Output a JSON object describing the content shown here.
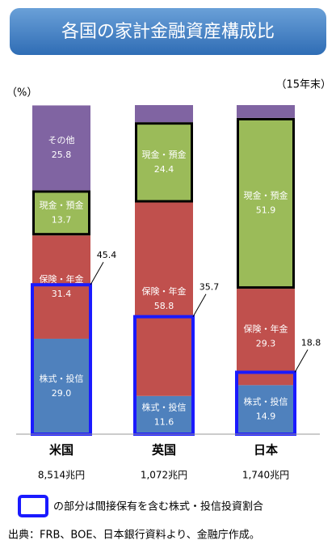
{
  "chart_data": {
    "type": "stacked_bar",
    "title": "各国の家計金融資産構成比",
    "subtitle": "（15年末）",
    "y_label": "（%）",
    "categories": [
      "米国",
      "英国",
      "日本"
    ],
    "totals": [
      "8,514兆円",
      "1,072兆円",
      "1,740兆円"
    ],
    "ylim": [
      0,
      100
    ],
    "series": [
      {
        "name": "株式・投信",
        "color": "#4f81bd",
        "values": [
          29.0,
          11.6,
          14.9
        ],
        "value_labels": [
          "29.0",
          "11.6",
          "14.9"
        ]
      },
      {
        "name": "保険・年金",
        "color": "#c0504d",
        "values": [
          31.4,
          58.8,
          29.3
        ],
        "value_labels": [
          "31.4",
          "58.8",
          "29.3"
        ]
      },
      {
        "name": "現金・預金",
        "color": "#9bbb59",
        "values": [
          13.7,
          24.4,
          51.9
        ],
        "value_labels": [
          "13.7",
          "24.4",
          "51.9"
        ],
        "border_color": "#000000"
      },
      {
        "name": "その他",
        "color": "#8064a2",
        "values": [
          25.8,
          5.2,
          3.9
        ],
        "value_labels": [
          "25.8",
          null,
          null
        ]
      }
    ],
    "indirect": {
      "color": "#1a1aff",
      "values": [
        45.4,
        35.7,
        18.8
      ]
    },
    "legend_text": "の部分は間接保有を含む株式・投信投資割合",
    "source": "出典：FRB、BOE、日本銀行資料より、金融庁作成。"
  }
}
